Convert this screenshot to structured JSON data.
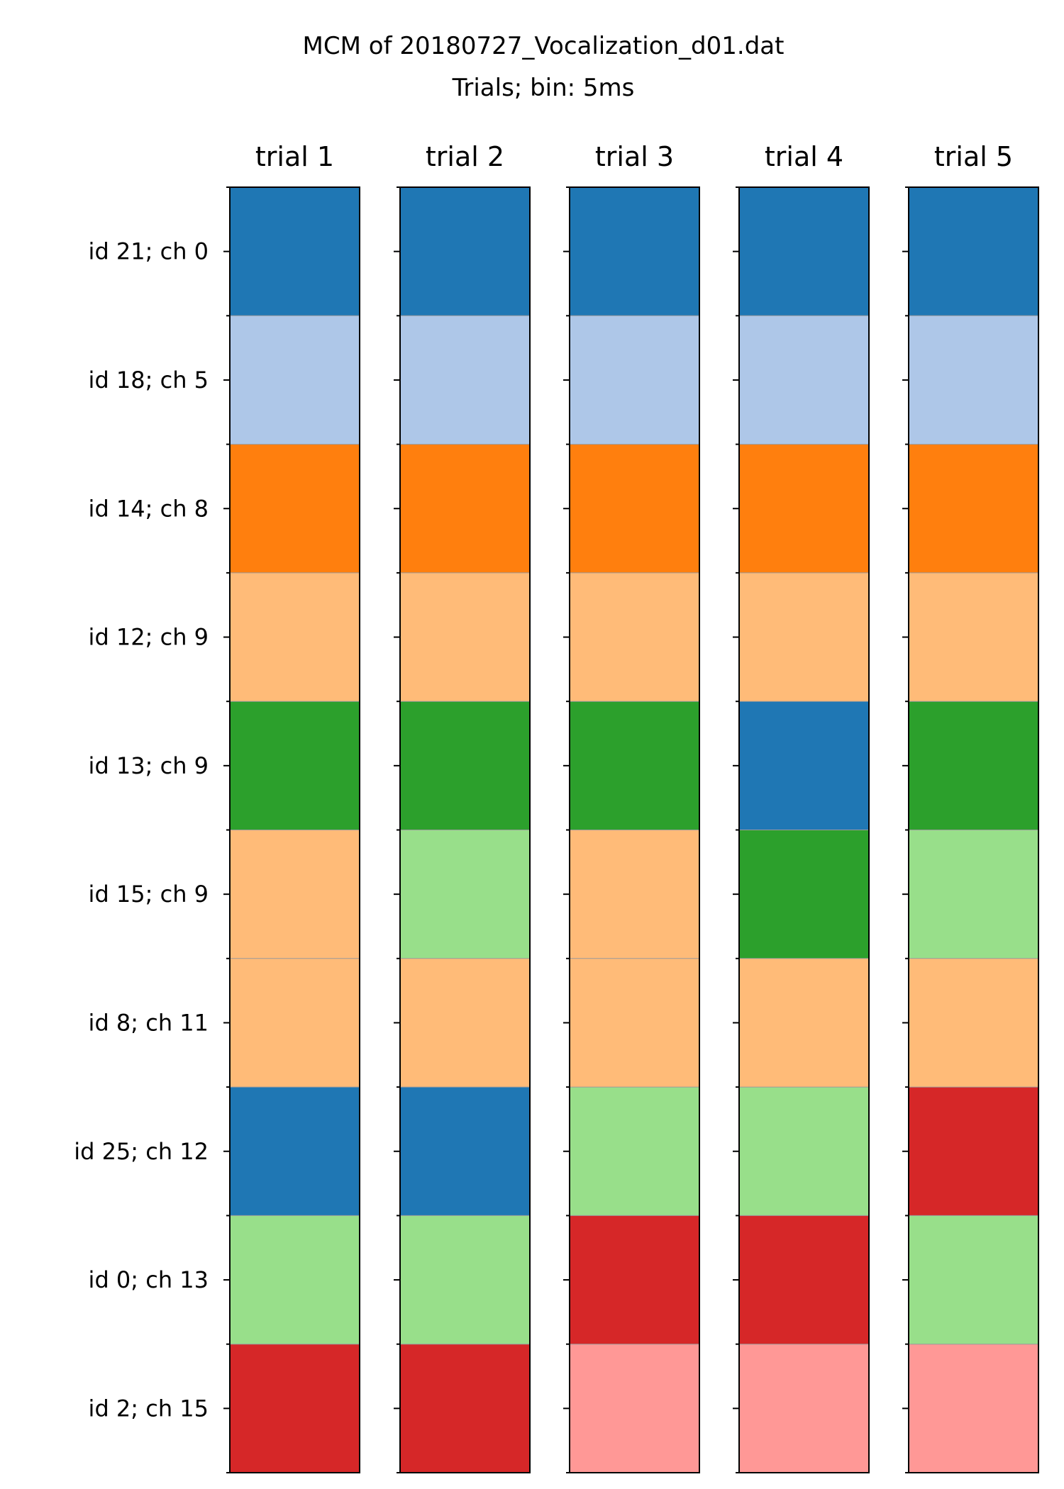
{
  "chart_data": {
    "type": "heatmap",
    "title": "MCM of 20180727_Vocalization_d01.dat",
    "subtitle": "Trials; bin: 5ms",
    "trials": [
      "trial 1",
      "trial 2",
      "trial 3",
      "trial 4",
      "trial 5"
    ],
    "rows": [
      "id 21; ch 0",
      "id 18; ch 5",
      "id 14; ch 8",
      "id 12; ch 9",
      "id 13; ch 9",
      "id 15; ch 9",
      "id 8; ch 11",
      "id 25; ch 12",
      "id 0; ch 13",
      "id 2; ch 15"
    ],
    "palette": [
      "#1f77b4",
      "#aec7e8",
      "#ff7f0e",
      "#ffbb78",
      "#2ca02c",
      "#98df8a",
      "#d62728",
      "#ff9896"
    ],
    "cluster_assignments": [
      [
        0,
        1,
        2,
        3,
        4,
        3,
        3,
        0,
        5,
        6
      ],
      [
        0,
        1,
        2,
        3,
        4,
        5,
        3,
        0,
        5,
        6
      ],
      [
        0,
        1,
        2,
        3,
        4,
        3,
        3,
        5,
        6,
        7
      ],
      [
        0,
        1,
        2,
        3,
        0,
        4,
        3,
        5,
        6,
        7
      ],
      [
        0,
        1,
        2,
        3,
        4,
        5,
        3,
        6,
        5,
        7
      ]
    ]
  }
}
